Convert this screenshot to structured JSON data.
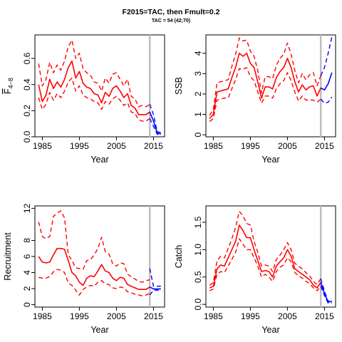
{
  "title": "F2015=TAC, then Fmult=0.2",
  "subtitle": "TAC = 54 (42;70)",
  "colors": {
    "historic": "#ff0000",
    "projection": "#0000ff",
    "vline": "#bebebe",
    "axis": "#000000"
  },
  "chart_data": [
    {
      "type": "line",
      "id": "fbar",
      "ylabel": "F̅ 4–8",
      "ylabel_main": "F",
      "ylabel_sub": "4−8",
      "xlabel": "Year",
      "xlim": [
        1983,
        2018
      ],
      "ylim": [
        0,
        0.78
      ],
      "xticks": [
        1985,
        1995,
        2005,
        2015
      ],
      "yticks": [
        0.0,
        0.2,
        0.4,
        0.6
      ],
      "ytick_labels": [
        "0.0",
        "0.2",
        "0.4",
        "0.6"
      ],
      "vline_x": 2014,
      "hist_years": [
        1984,
        1985,
        1986,
        1987,
        1988,
        1989,
        1990,
        1991,
        1992,
        1993,
        1994,
        1995,
        1996,
        1997,
        1998,
        1999,
        2000,
        2001,
        2002,
        2003,
        2004,
        2005,
        2006,
        2007,
        2008,
        2009,
        2010,
        2011,
        2012,
        2013,
        2014
      ],
      "hist_mid": [
        0.4,
        0.27,
        0.32,
        0.44,
        0.37,
        0.42,
        0.38,
        0.44,
        0.53,
        0.58,
        0.45,
        0.5,
        0.41,
        0.38,
        0.37,
        0.33,
        0.32,
        0.26,
        0.34,
        0.31,
        0.37,
        0.39,
        0.35,
        0.3,
        0.33,
        0.24,
        0.22,
        0.17,
        0.17,
        0.17,
        0.19
      ],
      "hist_lo": [
        0.3,
        0.21,
        0.25,
        0.34,
        0.28,
        0.33,
        0.3,
        0.35,
        0.42,
        0.45,
        0.35,
        0.39,
        0.32,
        0.3,
        0.29,
        0.27,
        0.26,
        0.21,
        0.27,
        0.25,
        0.29,
        0.31,
        0.28,
        0.24,
        0.26,
        0.19,
        0.18,
        0.13,
        0.12,
        0.12,
        0.14
      ],
      "hist_hi": [
        0.56,
        0.39,
        0.44,
        0.57,
        0.49,
        0.55,
        0.51,
        0.58,
        0.69,
        0.74,
        0.6,
        0.64,
        0.52,
        0.49,
        0.47,
        0.42,
        0.41,
        0.35,
        0.45,
        0.41,
        0.48,
        0.49,
        0.44,
        0.39,
        0.44,
        0.31,
        0.29,
        0.23,
        0.24,
        0.23,
        0.25
      ],
      "proj_years": [
        2014,
        2015,
        2016,
        2017
      ],
      "proj_mid": [
        0.19,
        0.12,
        0.03,
        0.02
      ],
      "proj_lo": [
        0.14,
        0.08,
        0.02,
        0.01
      ],
      "proj_hi": [
        0.25,
        0.17,
        0.04,
        0.03
      ]
    },
    {
      "type": "line",
      "id": "ssb",
      "ylabel": "SSB",
      "xlabel": "Year",
      "xlim": [
        1983,
        2018
      ],
      "ylim": [
        -0.1,
        4.9
      ],
      "xticks": [
        1985,
        1995,
        2005,
        2015
      ],
      "yticks": [
        0,
        1,
        2,
        3,
        4
      ],
      "ytick_labels": [
        "0",
        "1",
        "2",
        "3",
        "4"
      ],
      "vline_x": 2014,
      "hist_years": [
        1984,
        1985,
        1986,
        1987,
        1988,
        1989,
        1990,
        1991,
        1992,
        1993,
        1994,
        1995,
        1996,
        1997,
        1998,
        1999,
        2000,
        2001,
        2002,
        2003,
        2004,
        2005,
        2006,
        2007,
        2008,
        2009,
        2010,
        2011,
        2012,
        2013,
        2014
      ],
      "hist_mid": [
        0.8,
        1.0,
        2.1,
        2.15,
        2.2,
        2.25,
        2.8,
        3.3,
        4.0,
        3.85,
        4.0,
        3.5,
        3.3,
        2.6,
        1.8,
        2.35,
        2.35,
        2.25,
        2.8,
        3.1,
        3.3,
        3.75,
        3.3,
        2.6,
        2.1,
        2.45,
        2.2,
        2.35,
        2.4,
        1.9,
        2.3
      ],
      "hist_lo": [
        0.65,
        0.8,
        1.7,
        1.75,
        1.8,
        1.8,
        2.25,
        2.7,
        3.25,
        3.2,
        3.3,
        2.85,
        2.65,
        2.1,
        1.55,
        1.9,
        1.9,
        1.8,
        2.25,
        2.5,
        2.65,
        3.05,
        2.65,
        2.1,
        1.65,
        1.9,
        1.7,
        1.7,
        1.7,
        1.6,
        1.75
      ],
      "hist_hi": [
        0.95,
        1.25,
        2.55,
        2.6,
        2.65,
        2.7,
        3.35,
        3.95,
        4.75,
        4.6,
        4.65,
        4.1,
        3.85,
        3.15,
        2.05,
        2.85,
        2.85,
        2.75,
        3.4,
        3.75,
        3.95,
        4.5,
        3.95,
        3.15,
        2.55,
        3.0,
        2.7,
        2.95,
        3.05,
        2.4,
        2.9
      ],
      "proj_years": [
        2014,
        2015,
        2016,
        2017
      ],
      "proj_mid": [
        2.3,
        2.2,
        2.5,
        3.05
      ],
      "proj_lo": [
        1.75,
        1.55,
        1.6,
        1.85
      ],
      "proj_hi": [
        2.9,
        3.3,
        4.0,
        4.8
      ]
    },
    {
      "type": "line",
      "id": "recruitment",
      "ylabel": "Recruitment",
      "xlabel": "Year",
      "xlim": [
        1983,
        2018
      ],
      "ylim": [
        -0.3,
        12.3
      ],
      "xticks": [
        1985,
        1995,
        2005,
        2015
      ],
      "yticks": [
        0,
        2,
        4,
        6,
        8,
        12
      ],
      "ytick_labels": [
        "0",
        "2",
        "4",
        "6",
        "8",
        "12"
      ],
      "vline_x": 2014,
      "hist_years": [
        1984,
        1985,
        1986,
        1987,
        1988,
        1989,
        1990,
        1991,
        1992,
        1993,
        1994,
        1995,
        1996,
        1997,
        1998,
        1999,
        2000,
        2001,
        2002,
        2003,
        2004,
        2005,
        2006,
        2007,
        2008,
        2009,
        2010,
        2011,
        2012,
        2013,
        2014
      ],
      "hist_mid": [
        6.0,
        5.3,
        5.2,
        5.3,
        6.2,
        7.0,
        7.0,
        6.9,
        5.5,
        4.0,
        3.6,
        2.8,
        2.4,
        3.3,
        3.6,
        3.5,
        4.2,
        5.0,
        4.2,
        4.0,
        3.3,
        3.0,
        3.4,
        3.3,
        2.5,
        2.3,
        2.1,
        1.9,
        1.9,
        1.9,
        2.2
      ],
      "hist_lo": [
        3.4,
        3.3,
        3.3,
        3.5,
        4.1,
        4.4,
        4.3,
        4.0,
        2.7,
        2.4,
        1.8,
        1.2,
        1.9,
        2.2,
        2.4,
        2.3,
        2.8,
        3.0,
        2.6,
        2.5,
        2.1,
        2.0,
        2.2,
        2.1,
        1.6,
        1.5,
        1.3,
        1.2,
        1.1,
        1.2,
        1.4
      ],
      "hist_hi": [
        10.3,
        8.5,
        8.2,
        8.5,
        11.0,
        11.4,
        11.7,
        10.8,
        6.2,
        5.5,
        4.6,
        4.5,
        4.4,
        5.5,
        5.6,
        6.2,
        7.0,
        8.4,
        6.6,
        6.3,
        5.1,
        4.8,
        5.2,
        5.1,
        3.8,
        3.5,
        3.2,
        2.9,
        2.8,
        3.0,
        3.1
      ],
      "proj_years": [
        2014,
        2015,
        2016,
        2017
      ],
      "proj_mid": [
        2.2,
        1.95,
        1.95,
        1.95
      ],
      "proj_lo": [
        1.2,
        1.8,
        1.8,
        1.8
      ],
      "proj_hi": [
        4.5,
        2.3,
        2.3,
        2.3
      ]
    },
    {
      "type": "line",
      "id": "catch",
      "ylabel": "Catch",
      "xlabel": "Year",
      "xlim": [
        1983,
        2018
      ],
      "ylim": [
        -0.05,
        1.8
      ],
      "xticks": [
        1985,
        1995,
        2005,
        2015
      ],
      "yticks": [
        0.0,
        0.5,
        1.0,
        1.5
      ],
      "ytick_labels": [
        "0.0",
        "0.5",
        "1.0",
        "1.5"
      ],
      "vline_x": 2014,
      "hist_years": [
        1984,
        1985,
        1986,
        1987,
        1988,
        1989,
        1990,
        1991,
        1992,
        1993,
        1994,
        1995,
        1996,
        1997,
        1998,
        1999,
        2000,
        2001,
        2002,
        2003,
        2004,
        2005,
        2006,
        2007,
        2008,
        2009,
        2010,
        2011,
        2012,
        2013,
        2014
      ],
      "hist_mid": [
        0.3,
        0.33,
        0.65,
        0.72,
        0.7,
        0.85,
        1.0,
        1.15,
        1.45,
        1.35,
        1.22,
        1.22,
        1.0,
        0.8,
        0.6,
        0.62,
        0.6,
        0.5,
        0.7,
        0.78,
        0.85,
        1.0,
        0.88,
        0.65,
        0.6,
        0.55,
        0.5,
        0.45,
        0.35,
        0.3,
        0.4
      ],
      "hist_lo": [
        0.25,
        0.28,
        0.55,
        0.6,
        0.58,
        0.7,
        0.82,
        0.95,
        1.2,
        1.1,
        1.0,
        1.0,
        0.85,
        0.7,
        0.5,
        0.55,
        0.5,
        0.42,
        0.6,
        0.68,
        0.72,
        0.85,
        0.78,
        0.58,
        0.52,
        0.48,
        0.42,
        0.38,
        0.3,
        0.25,
        0.33
      ],
      "hist_hi": [
        0.35,
        0.4,
        0.8,
        0.88,
        0.85,
        1.02,
        1.2,
        1.4,
        1.7,
        1.62,
        1.48,
        1.45,
        1.15,
        0.95,
        0.7,
        0.72,
        0.7,
        0.6,
        0.82,
        0.9,
        1.0,
        1.13,
        1.0,
        0.75,
        0.7,
        0.65,
        0.58,
        0.52,
        0.42,
        0.36,
        0.47
      ],
      "proj_years": [
        2014,
        2015,
        2016,
        2017
      ],
      "proj_mid": [
        0.4,
        0.2,
        0.04,
        0.06
      ],
      "proj_lo": [
        0.33,
        0.16,
        0.02,
        0.03
      ],
      "proj_hi": [
        0.47,
        0.24,
        0.05,
        0.1
      ]
    }
  ]
}
